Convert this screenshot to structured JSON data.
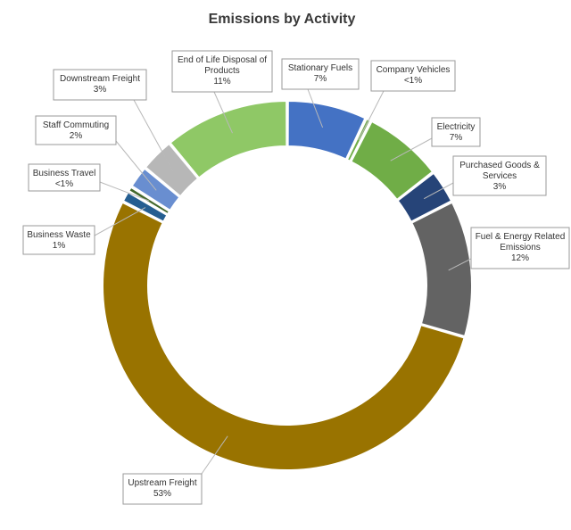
{
  "chart_data": {
    "type": "pie",
    "style": "doughnut",
    "title": "Emissions by Activity",
    "slices": [
      {
        "name": "Stationary Fuels",
        "label": "7%",
        "value": 7,
        "color": "#4472C4"
      },
      {
        "name": "Company Vehicles",
        "label": "<1%",
        "value": 0.5,
        "color": "#70AD47"
      },
      {
        "name": "Electricity",
        "label": "7%",
        "value": 7,
        "color": "#70AD47"
      },
      {
        "name": "Purchased Goods & Services",
        "label": "3%",
        "value": 3,
        "color": "#264478"
      },
      {
        "name": "Fuel & Energy Related Emissions",
        "label": "12%",
        "value": 12,
        "color": "#636363"
      },
      {
        "name": "Upstream Freight",
        "label": "53%",
        "value": 53,
        "color": "#997300"
      },
      {
        "name": "Business Waste",
        "label": "1%",
        "value": 1,
        "color": "#255E91"
      },
      {
        "name": "Business Travel",
        "label": "<1%",
        "value": 0.5,
        "color": "#43682B"
      },
      {
        "name": "Staff Commuting",
        "label": "2%",
        "value": 2,
        "color": "#698ED0"
      },
      {
        "name": "Downstream Freight",
        "label": "3%",
        "value": 3,
        "color": "#B7B7B7"
      },
      {
        "name": "End of Life Disposal of Products",
        "label": "11%",
        "value": 11,
        "color": "#8FC866"
      }
    ]
  }
}
